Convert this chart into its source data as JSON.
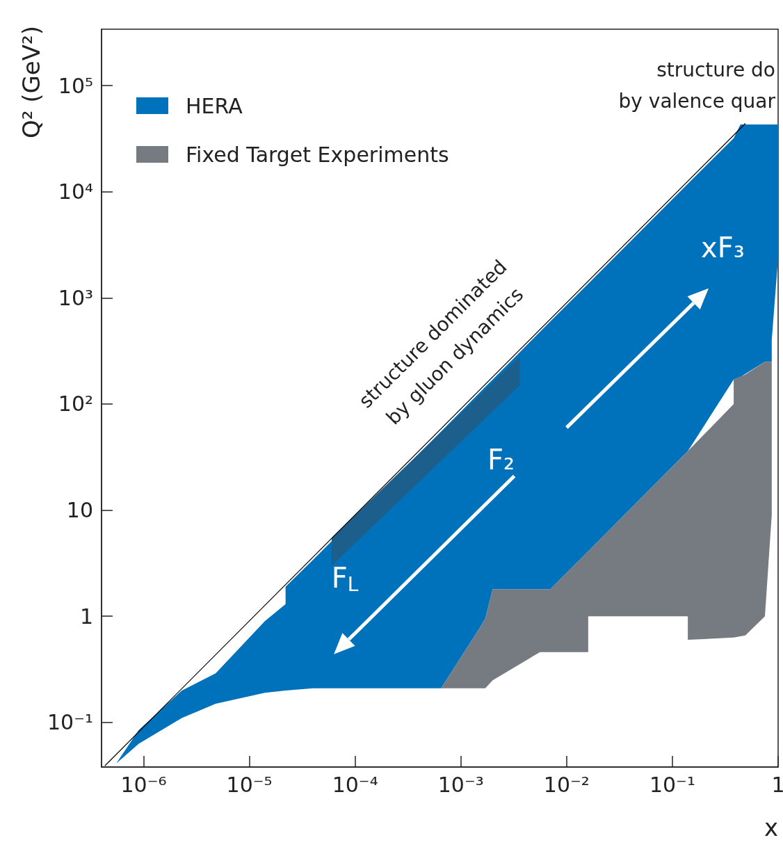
{
  "chart_data": {
    "type": "area",
    "xlabel": "x",
    "ylabel": "Q² (GeV²)",
    "log": "xy",
    "legend": "top left",
    "xlim": [
      4e-07,
      1
    ],
    "ylim": [
      0.038,
      340000
    ],
    "xticks": [
      {
        "value": 1e-06,
        "label": "10⁻⁶"
      },
      {
        "value": 1e-05,
        "label": "10⁻⁵"
      },
      {
        "value": 0.0001,
        "label": "10⁻⁴"
      },
      {
        "value": 0.001,
        "label": "10⁻³"
      },
      {
        "value": 0.01,
        "label": "10⁻²"
      },
      {
        "value": 0.1,
        "label": "10⁻¹"
      },
      1
    ],
    "yticks": [
      {
        "value": 0.1,
        "label": "10⁻¹"
      },
      1,
      10,
      {
        "value": 100,
        "label": "10²"
      },
      {
        "value": 1000,
        "label": "10³"
      },
      {
        "value": 10000,
        "label": "10⁴"
      },
      {
        "value": 100000,
        "label": "10⁵"
      }
    ],
    "series": [
      {
        "name": "HERA",
        "type": "area",
        "color": "#0072bb",
        "x": [
          5.5e-07,
          9e-07,
          2.3e-06,
          4.8e-06,
          1.4e-05,
          2.2e-05,
          2.2e-05,
          4e-05,
          0.00065,
          0.0015,
          0.0017,
          0.002,
          0.007,
          0.016,
          0.14,
          0.38,
          0.44,
          0.75,
          0.87,
          0.87,
          1
        ],
        "values": [
          null,
          null,
          null,
          null,
          null,
          null,
          null,
          null,
          null,
          null,
          null,
          null,
          null,
          null,
          null,
          null,
          null,
          null,
          null,
          null,
          null
        ],
        "upper": [
          0.041,
          0.085,
          0.2,
          0.29,
          0.9,
          1.3,
          1.9,
          3.4,
          55,
          128,
          145,
          170,
          600,
          1360,
          11900,
          32000,
          43000,
          43000,
          43000,
          43000,
          43000
        ],
        "lower": [
          0.041,
          0.063,
          0.11,
          0.15,
          0.19,
          0.2,
          0.2,
          0.21,
          0.21,
          0.77,
          0.95,
          1.8,
          1.8,
          4.1,
          36,
          170,
          180,
          250,
          250,
          400,
          2400
        ]
      },
      {
        "name": "Fixed Target Experiments",
        "type": "area",
        "color": "#757b80",
        "x": [
          0.00065,
          0.0015,
          0.0017,
          0.002,
          0.0056,
          0.007,
          0.016,
          0.016,
          0.14,
          0.14,
          0.38,
          0.38,
          0.49,
          0.75,
          0.87
        ],
        "values": [
          null,
          null,
          null,
          null,
          null,
          null,
          null,
          null,
          null,
          null,
          null,
          null,
          null,
          null,
          null
        ],
        "upper": [
          0.21,
          0.77,
          0.95,
          1.8,
          1.8,
          1.8,
          4.1,
          4.1,
          36,
          36,
          100,
          170,
          190,
          250,
          250
        ],
        "lower": [
          0.21,
          0.21,
          0.21,
          0.25,
          0.46,
          0.46,
          0.46,
          1,
          1,
          0.6,
          0.63,
          0.63,
          0.66,
          1,
          9
        ]
      },
      {
        "color": "#1d5f8c",
        "x": [
          6e-05,
          0.0036
        ],
        "values": [
          null,
          null
        ],
        "upper": [
          5.5,
          280
        ],
        "lower": [
          3,
          150
        ]
      },
      {
        "type": "line",
        "color": "#000000",
        "marker": "none",
        "x": [
          4.3e-07,
          0.49
        ],
        "values": [
          0.039,
          44000
        ]
      }
    ],
    "annotations": [
      "F$_{L}$",
      "F₂",
      "xF₃",
      "structure dominated\nby gluon dynamics",
      "structure do\nby valence quar"
    ]
  }
}
